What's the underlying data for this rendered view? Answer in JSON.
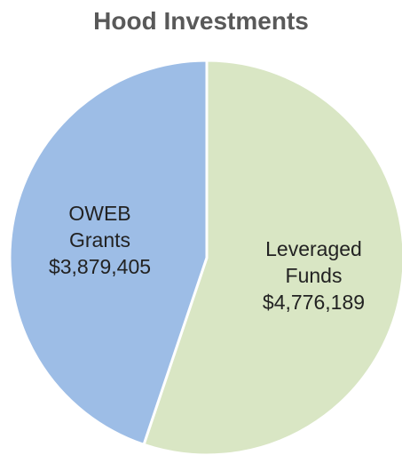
{
  "chart_data": {
    "type": "pie",
    "title": "Hood Investments",
    "categories": [
      "OWEB Grants",
      "Leveraged Funds"
    ],
    "values": [
      3879405,
      4776189
    ],
    "value_labels": [
      "$3,879,405",
      "$4,776,189"
    ],
    "colors": [
      "#9dbde6",
      "#d9e6c4"
    ]
  }
}
